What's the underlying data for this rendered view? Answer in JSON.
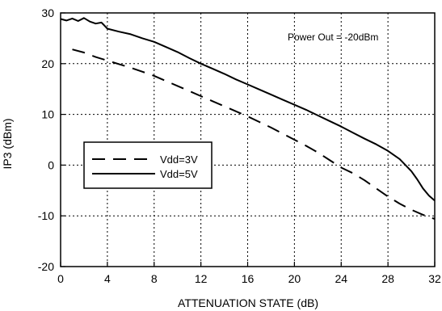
{
  "chart_data": {
    "type": "line",
    "title": "",
    "xlabel": "ATTENUATION STATE (dB)",
    "ylabel": "IP3 (dBm)",
    "xlim": [
      0,
      32
    ],
    "ylim": [
      -20,
      30
    ],
    "xticks": [
      0,
      4,
      8,
      12,
      16,
      20,
      24,
      28,
      32
    ],
    "yticks": [
      -20,
      -10,
      0,
      10,
      20,
      30
    ],
    "grid": true,
    "annotation": "Power Out = -20dBm",
    "legend_position": "middle-left",
    "series": [
      {
        "name": "Vdd=3V",
        "style": "dashed",
        "color": "#000000",
        "x": [
          1,
          2,
          3,
          4,
          5,
          6,
          7,
          8,
          9,
          10,
          11,
          12,
          13,
          14,
          15,
          16,
          17,
          18,
          19,
          20,
          21,
          22,
          23,
          24,
          25,
          26,
          27,
          28,
          29,
          30,
          31,
          32
        ],
        "y": [
          22.8,
          22.2,
          21.3,
          20.6,
          19.9,
          19.2,
          18.4,
          17.6,
          16.6,
          15.6,
          14.6,
          13.6,
          12.6,
          11.6,
          10.6,
          9.6,
          8.5,
          7.4,
          6.2,
          5.0,
          3.8,
          2.5,
          1.0,
          -0.5,
          -1.6,
          -3.0,
          -4.6,
          -6.2,
          -7.6,
          -8.8,
          -9.8,
          -10.6
        ]
      },
      {
        "name": "Vdd=5V",
        "style": "solid",
        "color": "#000000",
        "x": [
          0,
          0.5,
          1,
          1.5,
          2,
          2.5,
          3,
          3.5,
          4,
          5,
          6,
          7,
          8,
          9,
          10,
          11,
          12,
          13,
          14,
          15,
          16,
          17,
          18,
          19,
          20,
          21,
          22,
          23,
          24,
          25,
          26,
          27,
          28,
          29,
          30,
          30.5,
          31,
          31.5,
          32
        ],
        "y": [
          28.8,
          28.5,
          28.9,
          28.4,
          29.0,
          28.3,
          27.9,
          28.1,
          26.9,
          26.3,
          25.8,
          25.0,
          24.3,
          23.3,
          22.3,
          21.1,
          20.0,
          19.0,
          18.0,
          16.9,
          15.9,
          14.9,
          13.9,
          12.9,
          11.9,
          10.9,
          9.8,
          8.7,
          7.6,
          6.4,
          5.2,
          4.1,
          2.8,
          1.2,
          -1.2,
          -2.8,
          -4.6,
          -6.0,
          -7.0
        ]
      }
    ]
  }
}
